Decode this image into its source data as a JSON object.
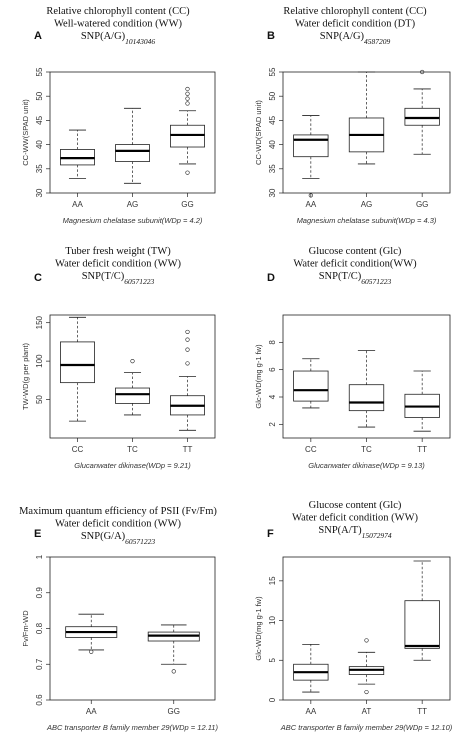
{
  "figure": {
    "panels": [
      {
        "id": "A",
        "letter": "A",
        "title_lines": [
          "Relative chlorophyll content (CC)",
          "Well-watered condition (WW)"
        ],
        "snp": "SNP(A/G)",
        "snp_sub": "10143046"
      },
      {
        "id": "B",
        "letter": "B",
        "title_lines": [
          "Relative chlorophyll content (CC)",
          "Water deficit condition (DT)"
        ],
        "snp": "SNP(A/G)",
        "snp_sub": "4587209"
      },
      {
        "id": "C",
        "letter": "C",
        "title_lines": [
          "Tuber fresh weight (TW)",
          "Water deficit condition (WW)"
        ],
        "snp": "SNP(T/C)",
        "snp_sub": "60571223"
      },
      {
        "id": "D",
        "letter": "D",
        "title_lines": [
          "Glucose content (Glc)",
          "Water deficit condition(WW)"
        ],
        "snp": "SNP(T/C)",
        "snp_sub": "60571223"
      },
      {
        "id": "E",
        "letter": "E",
        "title_lines": [
          "Maximum quantum efficiency of PSII (Fv/Fm)",
          "Water deficit condition (WW)"
        ],
        "snp": "SNP(G/A)",
        "snp_sub": "60571223"
      },
      {
        "id": "F",
        "letter": "F",
        "title_lines": [
          "Glucose content (Glc)",
          "Water deficit condition (WW)"
        ],
        "snp": "SNP(A/T)",
        "snp_sub": "15072974"
      }
    ]
  },
  "chart_data": [
    {
      "type": "box",
      "id": "A",
      "ylabel": "CC-WW(SPAD unit)",
      "xlabel": "Magnesium chelatase subunit(WDp = 4.2)",
      "ylim": [
        30,
        55
      ],
      "yticks": [
        30,
        35,
        40,
        45,
        50,
        55
      ],
      "categories": [
        "AA",
        "AG",
        "GG"
      ],
      "boxes": [
        {
          "min": 33,
          "q1": 35.8,
          "median": 37.2,
          "q3": 39,
          "max": 43,
          "outliers": []
        },
        {
          "min": 32,
          "q1": 36.5,
          "median": 38.7,
          "q3": 40,
          "max": 47.5,
          "outliers": []
        },
        {
          "min": 36,
          "q1": 39.5,
          "median": 42,
          "q3": 44,
          "max": 47,
          "outliers": [
            51.5,
            50.5,
            49.5,
            48.5,
            34.2
          ]
        }
      ]
    },
    {
      "type": "box",
      "id": "B",
      "ylabel": "CC-WD(SPAD unit)",
      "xlabel": "Magnesium chelatase subunit(WDp = 4.3)",
      "ylim": [
        30,
        55
      ],
      "yticks": [
        30,
        35,
        40,
        45,
        50,
        55
      ],
      "categories": [
        "AA",
        "AG",
        "GG"
      ],
      "boxes": [
        {
          "min": 33,
          "q1": 37.5,
          "median": 41,
          "q3": 42,
          "max": 46,
          "outliers": [
            29.5
          ]
        },
        {
          "min": 36,
          "q1": 38.5,
          "median": 42,
          "q3": 45.5,
          "max": 55,
          "outliers": []
        },
        {
          "min": 38,
          "q1": 44,
          "median": 45.5,
          "q3": 47.5,
          "max": 51.5,
          "outliers": [
            55
          ]
        }
      ]
    },
    {
      "type": "box",
      "id": "C",
      "ylabel": "TW-WD(g per plant)",
      "xlabel": "Glucanwater dikinase(WDp = 9.21)",
      "ylim": [
        0,
        160
      ],
      "yticks": [
        50,
        100,
        150
      ],
      "categories": [
        "CC",
        "TC",
        "TT"
      ],
      "boxes": [
        {
          "min": 22,
          "q1": 72,
          "median": 95,
          "q3": 125,
          "max": 157,
          "outliers": []
        },
        {
          "min": 30,
          "q1": 45,
          "median": 57,
          "q3": 65,
          "max": 85,
          "outliers": [
            100
          ]
        },
        {
          "min": 10,
          "q1": 30,
          "median": 42,
          "q3": 55,
          "max": 80,
          "outliers": [
            138,
            128,
            115,
            97
          ]
        }
      ]
    },
    {
      "type": "box",
      "id": "D",
      "ylabel": "Glc-WD(mg g-1 fw)",
      "xlabel": "Glucanwater dikinase(WDp = 9.13)",
      "ylim": [
        1,
        10
      ],
      "yticks": [
        2,
        4,
        6,
        8
      ],
      "categories": [
        "CC",
        "TC",
        "TT"
      ],
      "boxes": [
        {
          "min": 3.2,
          "q1": 3.7,
          "median": 4.5,
          "q3": 5.9,
          "max": 6.8,
          "outliers": []
        },
        {
          "min": 1.8,
          "q1": 3,
          "median": 3.6,
          "q3": 4.9,
          "max": 7.4,
          "outliers": []
        },
        {
          "min": 1.5,
          "q1": 2.5,
          "median": 3.3,
          "q3": 4.2,
          "max": 5.9,
          "outliers": []
        }
      ]
    },
    {
      "type": "box",
      "id": "E",
      "ylabel": "Fv/Fm-WD",
      "xlabel": "ABC transporter B family member 29(WDp = 12.11)",
      "ylim": [
        0.6,
        1.0
      ],
      "yticks": [
        0.6,
        0.7,
        0.8,
        0.9,
        1.0
      ],
      "categories": [
        "AA",
        "GG"
      ],
      "boxes": [
        {
          "min": 0.74,
          "q1": 0.775,
          "median": 0.79,
          "q3": 0.805,
          "max": 0.84,
          "outliers": [
            0.735
          ]
        },
        {
          "min": 0.7,
          "q1": 0.765,
          "median": 0.78,
          "q3": 0.79,
          "max": 0.81,
          "outliers": [
            0.68
          ]
        }
      ]
    },
    {
      "type": "box",
      "id": "F",
      "ylabel": "Glc-WD(mg g-1 fw)",
      "xlabel": "ABC transporter B family member 29(WDp = 12.10)",
      "ylim": [
        0,
        18
      ],
      "yticks": [
        0,
        5,
        10,
        15
      ],
      "categories": [
        "AA",
        "AT",
        "TT"
      ],
      "boxes": [
        {
          "min": 1,
          "q1": 2.5,
          "median": 3.5,
          "q3": 4.5,
          "max": 7,
          "outliers": []
        },
        {
          "min": 2,
          "q1": 3.2,
          "median": 3.8,
          "q3": 4.2,
          "max": 6,
          "outliers": [
            7.5,
            1
          ]
        },
        {
          "min": 5,
          "q1": 6.5,
          "median": 6.8,
          "q3": 12.5,
          "max": 17.5,
          "outliers": []
        }
      ]
    }
  ]
}
